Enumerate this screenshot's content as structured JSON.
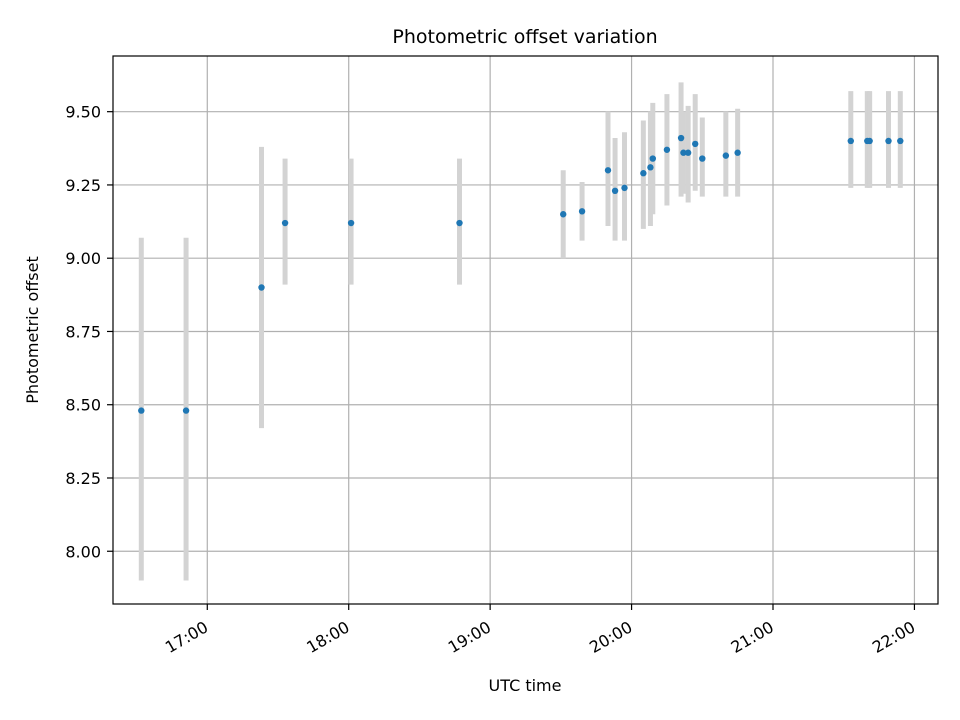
{
  "chart_data": {
    "type": "scatter",
    "title": "Photometric offset variation",
    "xlabel": "UTC time",
    "ylabel": "Photometric offset",
    "x_axis_kind": "time",
    "xlim": [
      "16:20",
      "22:10"
    ],
    "ylim": [
      7.82,
      9.69
    ],
    "grid": true,
    "x_ticks": [
      "17:00",
      "18:00",
      "19:00",
      "20:00",
      "21:00",
      "22:00"
    ],
    "y_ticks": [
      "8.00",
      "8.25",
      "8.50",
      "8.75",
      "9.00",
      "9.25",
      "9.50"
    ],
    "colors": {
      "points": "#1f77b4",
      "errorbars": "#d3d3d3",
      "grid": "#b0b0b0"
    },
    "points": [
      {
        "x": "16:32",
        "y": 8.48,
        "ylow": 7.9,
        "yhigh": 9.07
      },
      {
        "x": "16:51",
        "y": 8.48,
        "ylow": 7.9,
        "yhigh": 9.07
      },
      {
        "x": "17:23",
        "y": 8.9,
        "ylow": 8.42,
        "yhigh": 9.38
      },
      {
        "x": "17:33",
        "y": 9.12,
        "ylow": 8.91,
        "yhigh": 9.34
      },
      {
        "x": "18:01",
        "y": 9.12,
        "ylow": 8.91,
        "yhigh": 9.34
      },
      {
        "x": "18:47",
        "y": 9.12,
        "ylow": 8.91,
        "yhigh": 9.34
      },
      {
        "x": "19:31",
        "y": 9.15,
        "ylow": 9.0,
        "yhigh": 9.3
      },
      {
        "x": "19:39",
        "y": 9.16,
        "ylow": 9.06,
        "yhigh": 9.26
      },
      {
        "x": "19:50",
        "y": 9.3,
        "ylow": 9.11,
        "yhigh": 9.5
      },
      {
        "x": "19:53",
        "y": 9.23,
        "ylow": 9.06,
        "yhigh": 9.41
      },
      {
        "x": "19:57",
        "y": 9.24,
        "ylow": 9.06,
        "yhigh": 9.43
      },
      {
        "x": "20:05",
        "y": 9.29,
        "ylow": 9.1,
        "yhigh": 9.47
      },
      {
        "x": "20:08",
        "y": 9.31,
        "ylow": 9.11,
        "yhigh": 9.5
      },
      {
        "x": "20:09",
        "y": 9.34,
        "ylow": 9.15,
        "yhigh": 9.53
      },
      {
        "x": "20:15",
        "y": 9.37,
        "ylow": 9.18,
        "yhigh": 9.56
      },
      {
        "x": "20:21",
        "y": 9.41,
        "ylow": 9.21,
        "yhigh": 9.6
      },
      {
        "x": "20:22",
        "y": 9.36,
        "ylow": 9.22,
        "yhigh": 9.5
      },
      {
        "x": "20:24",
        "y": 9.36,
        "ylow": 9.19,
        "yhigh": 9.52
      },
      {
        "x": "20:27",
        "y": 9.39,
        "ylow": 9.23,
        "yhigh": 9.56
      },
      {
        "x": "20:30",
        "y": 9.34,
        "ylow": 9.21,
        "yhigh": 9.48
      },
      {
        "x": "20:40",
        "y": 9.35,
        "ylow": 9.21,
        "yhigh": 9.5
      },
      {
        "x": "20:45",
        "y": 9.36,
        "ylow": 9.21,
        "yhigh": 9.51
      },
      {
        "x": "21:33",
        "y": 9.4,
        "ylow": 9.24,
        "yhigh": 9.57
      },
      {
        "x": "21:40",
        "y": 9.4,
        "ylow": 9.24,
        "yhigh": 9.57
      },
      {
        "x": "21:41",
        "y": 9.4,
        "ylow": 9.24,
        "yhigh": 9.57
      },
      {
        "x": "21:49",
        "y": 9.4,
        "ylow": 9.24,
        "yhigh": 9.57
      },
      {
        "x": "21:54",
        "y": 9.4,
        "ylow": 9.24,
        "yhigh": 9.57
      }
    ]
  }
}
